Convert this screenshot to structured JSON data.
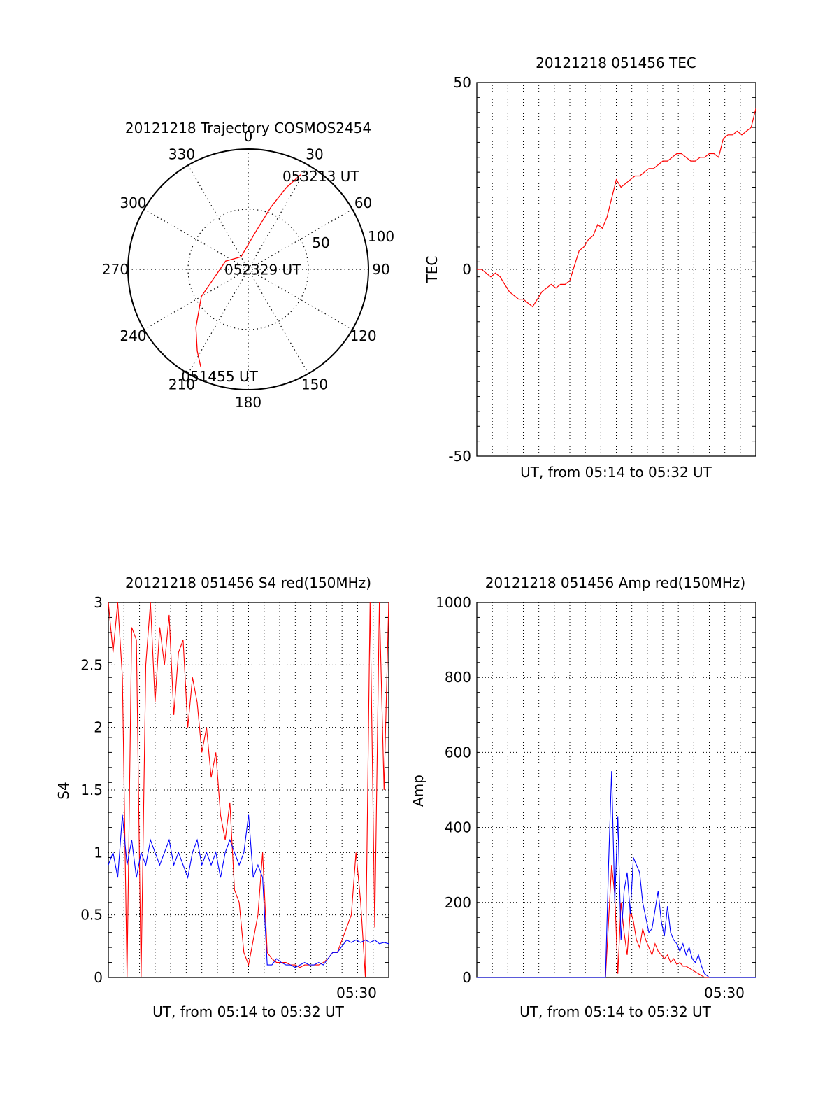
{
  "chart_data": [
    {
      "type": "polar",
      "title": "20121218 Trajectory COSMOS2454",
      "angle_labels": [
        "0",
        "30",
        "60",
        "90",
        "120",
        "150",
        "180",
        "210",
        "240",
        "270",
        "300",
        "330"
      ],
      "radial_labels": [
        "50",
        "100"
      ],
      "rlim": [
        0,
        100
      ],
      "grid": true,
      "series": [
        {
          "color": "#ff0000",
          "azimuth": [
            206,
            212,
            222,
            240,
            290,
            330,
            10,
            20,
            25,
            29
          ],
          "radius": [
            90,
            80,
            65,
            45,
            20,
            12,
            30,
            55,
            75,
            90
          ]
        }
      ],
      "annotations": [
        {
          "text": "053213 UT",
          "azimuth": 38,
          "radius": 98
        },
        {
          "text": "052329 UT",
          "azimuth": 92,
          "radius": 12
        },
        {
          "text": "051455 UT",
          "azimuth": 195,
          "radius": 92
        }
      ]
    },
    {
      "type": "line",
      "title": "20121218 051456 TEC",
      "xlabel": "UT, from 05:14 to 05:32 UT",
      "ylabel": "TEC",
      "ylim": [
        -50,
        50
      ],
      "xlim": [
        0,
        18
      ],
      "ytick_labels": [
        "-50",
        "0",
        "50"
      ],
      "yticks": [
        -50,
        0,
        50
      ],
      "grid": true,
      "series": [
        {
          "color": "#ff0000",
          "x": [
            0.0,
            0.3,
            0.6,
            0.9,
            1.2,
            1.5,
            1.8,
            2.1,
            2.4,
            2.7,
            3.0,
            3.3,
            3.6,
            3.9,
            4.2,
            4.5,
            4.8,
            5.1,
            5.4,
            5.7,
            6.0,
            6.3,
            6.6,
            6.9,
            7.2,
            7.5,
            7.8,
            8.1,
            8.4,
            8.7,
            9.0,
            9.3,
            9.6,
            9.9,
            10.2,
            10.5,
            10.8,
            11.1,
            11.4,
            11.7,
            12.0,
            12.3,
            12.6,
            12.9,
            13.2,
            13.5,
            13.8,
            14.1,
            14.4,
            14.7,
            15.0,
            15.3,
            15.6,
            15.9,
            16.2,
            16.5,
            16.8,
            17.1,
            17.4,
            17.7,
            18.0
          ],
          "y": [
            0,
            0,
            -1,
            -2,
            -1,
            -2,
            -4,
            -6,
            -7,
            -8,
            -8,
            -9,
            -10,
            -8,
            -6,
            -5,
            -4,
            -5,
            -4,
            -4,
            -3,
            1,
            5,
            6,
            8,
            9,
            12,
            11,
            14,
            19,
            24,
            22,
            23,
            24,
            25,
            25,
            26,
            27,
            27,
            28,
            29,
            29,
            30,
            31,
            31,
            30,
            29,
            29,
            30,
            30,
            31,
            31,
            30,
            35,
            36,
            36,
            37,
            36,
            37,
            38,
            43
          ]
        }
      ]
    },
    {
      "type": "line",
      "title": "20121218 051456 S4 red(150MHz)",
      "xlabel": "UT, from 05:14 to 05:32 UT",
      "ylabel": "S4",
      "ylim": [
        0,
        3
      ],
      "xlim": [
        0,
        18
      ],
      "ytick_labels": [
        "0",
        "0.5",
        "1",
        "1.5",
        "2",
        "2.5",
        "3"
      ],
      "yticks": [
        0,
        0.5,
        1,
        1.5,
        2,
        2.5,
        3
      ],
      "xtick_label": "05:30",
      "xtick_at": 16,
      "grid": true,
      "series": [
        {
          "color": "#ff0000",
          "x": [
            0.0,
            0.3,
            0.6,
            0.9,
            1.2,
            1.5,
            1.8,
            2.1,
            2.4,
            2.7,
            3.0,
            3.3,
            3.6,
            3.9,
            4.2,
            4.5,
            4.8,
            5.1,
            5.4,
            5.7,
            6.0,
            6.3,
            6.6,
            6.9,
            7.2,
            7.5,
            7.8,
            8.1,
            8.4,
            8.7,
            9.0,
            9.3,
            9.6,
            9.9,
            10.2,
            10.5,
            10.8,
            11.1,
            11.4,
            11.7,
            12.0,
            12.3,
            12.6,
            12.9,
            13.2,
            13.5,
            13.8,
            14.1,
            14.4,
            14.7,
            15.0,
            15.3,
            15.6,
            15.9,
            16.2,
            16.5,
            16.8,
            17.1,
            17.4,
            17.7,
            18.0
          ],
          "y": [
            3.0,
            2.6,
            3.0,
            2.4,
            0.0,
            2.8,
            2.7,
            0.0,
            2.5,
            3.0,
            2.2,
            2.8,
            2.5,
            2.9,
            2.1,
            2.6,
            2.7,
            2.0,
            2.4,
            2.2,
            1.8,
            2.0,
            1.6,
            1.8,
            1.3,
            1.1,
            1.4,
            0.7,
            0.6,
            0.2,
            0.1,
            0.3,
            0.5,
            1.0,
            0.2,
            0.15,
            0.12,
            0.12,
            0.12,
            0.1,
            0.1,
            0.08,
            0.1,
            0.1,
            0.1,
            0.1,
            0.12,
            0.15,
            0.2,
            0.2,
            0.3,
            0.4,
            0.5,
            1.0,
            0.6,
            0.0,
            3.0,
            0.4,
            3.0,
            1.5,
            3.0
          ]
        },
        {
          "color": "#0000ff",
          "x": [
            0.0,
            0.3,
            0.6,
            0.9,
            1.2,
            1.5,
            1.8,
            2.1,
            2.4,
            2.7,
            3.0,
            3.3,
            3.6,
            3.9,
            4.2,
            4.5,
            4.8,
            5.1,
            5.4,
            5.7,
            6.0,
            6.3,
            6.6,
            6.9,
            7.2,
            7.5,
            7.8,
            8.1,
            8.4,
            8.7,
            9.0,
            9.3,
            9.6,
            9.9,
            10.2,
            10.5,
            10.8,
            11.1,
            11.4,
            11.7,
            12.0,
            12.3,
            12.6,
            12.9,
            13.2,
            13.5,
            13.8,
            14.1,
            14.4,
            14.7,
            15.0,
            15.3,
            15.6,
            15.9,
            16.2,
            16.5,
            16.8,
            17.1,
            17.4,
            17.7,
            18.0
          ],
          "y": [
            0.9,
            1.0,
            0.8,
            1.3,
            0.9,
            1.1,
            0.8,
            1.0,
            0.9,
            1.1,
            1.0,
            0.9,
            1.0,
            1.1,
            0.9,
            1.0,
            0.9,
            0.8,
            1.0,
            1.1,
            0.9,
            1.0,
            0.9,
            1.0,
            0.8,
            1.0,
            1.1,
            1.0,
            0.9,
            1.0,
            1.3,
            0.8,
            0.9,
            0.8,
            0.1,
            0.1,
            0.15,
            0.12,
            0.1,
            0.1,
            0.08,
            0.1,
            0.12,
            0.1,
            0.1,
            0.12,
            0.1,
            0.15,
            0.2,
            0.2,
            0.25,
            0.3,
            0.28,
            0.3,
            0.28,
            0.3,
            0.28,
            0.3,
            0.27,
            0.28,
            0.27
          ]
        }
      ]
    },
    {
      "type": "line",
      "title": "20121218 051456 Amp red(150MHz)",
      "xlabel": "UT, from 05:14 to 05:32 UT",
      "ylabel": "Amp",
      "ylim": [
        0,
        1000
      ],
      "xlim": [
        0,
        18
      ],
      "ytick_labels": [
        "0",
        "200",
        "400",
        "600",
        "800",
        "1000"
      ],
      "yticks": [
        0,
        200,
        400,
        600,
        800,
        1000
      ],
      "xtick_label": "05:30",
      "xtick_at": 16,
      "grid": true,
      "series": [
        {
          "color": "#ff0000",
          "x": [
            0.0,
            8.3,
            8.5,
            8.7,
            8.9,
            9.1,
            9.3,
            9.5,
            9.7,
            9.9,
            10.1,
            10.3,
            10.5,
            10.7,
            10.9,
            11.1,
            11.3,
            11.5,
            11.7,
            11.9,
            12.1,
            12.3,
            12.5,
            12.7,
            12.9,
            13.1,
            13.3,
            13.5,
            13.7,
            13.9,
            14.1,
            14.3,
            14.5,
            14.7,
            15.0,
            18.0
          ],
          "y": [
            0,
            0,
            150,
            300,
            220,
            10,
            200,
            120,
            60,
            180,
            150,
            100,
            80,
            130,
            100,
            80,
            60,
            90,
            70,
            60,
            50,
            60,
            40,
            50,
            35,
            40,
            30,
            30,
            25,
            20,
            15,
            10,
            5,
            0,
            0,
            0
          ]
        },
        {
          "color": "#0000ff",
          "x": [
            0.0,
            8.3,
            8.5,
            8.7,
            8.9,
            9.1,
            9.3,
            9.5,
            9.7,
            9.9,
            10.1,
            10.3,
            10.5,
            10.7,
            10.9,
            11.1,
            11.3,
            11.5,
            11.7,
            11.9,
            12.1,
            12.3,
            12.5,
            12.7,
            12.9,
            13.1,
            13.3,
            13.5,
            13.7,
            13.9,
            14.1,
            14.3,
            14.5,
            14.7,
            15.0,
            18.0
          ],
          "y": [
            0,
            0,
            300,
            550,
            200,
            430,
            100,
            230,
            280,
            170,
            320,
            300,
            280,
            200,
            160,
            120,
            130,
            180,
            230,
            150,
            110,
            190,
            120,
            100,
            90,
            70,
            90,
            60,
            80,
            50,
            40,
            60,
            30,
            10,
            0,
            0
          ]
        }
      ]
    }
  ]
}
